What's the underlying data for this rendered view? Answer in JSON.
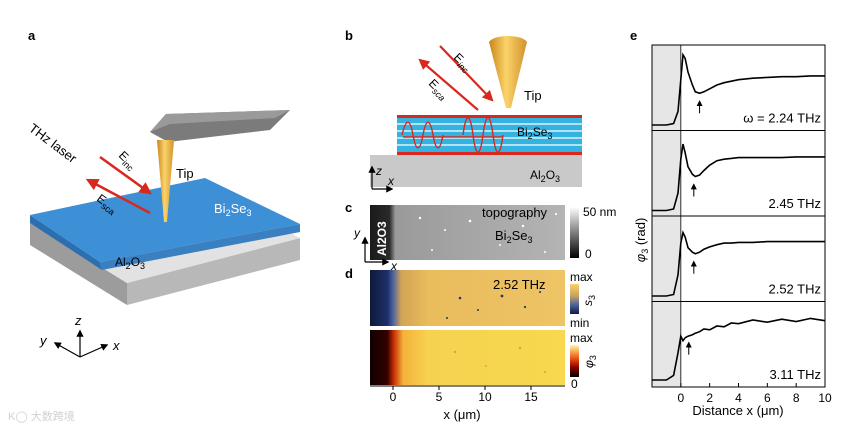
{
  "panels": {
    "a": "a",
    "b": "b",
    "c": "c",
    "d": "d",
    "e": "e"
  },
  "panel_a": {
    "laser": "THz laser",
    "e_inc": "E",
    "inc_sub": "inc",
    "e_sca": "E",
    "sca_sub": "sca",
    "tip": "Tip",
    "film": "Bi",
    "film_sub1": "2",
    "film_mid": "Se",
    "film_sub2": "3",
    "substrate": "Al",
    "sub_sub1": "2",
    "sub_mid": "O",
    "sub_sub2": "3",
    "axes": {
      "z": "z",
      "y": "y",
      "x": "x"
    },
    "colors": {
      "film": "#3d8fd6",
      "substrate": "#cfcfcf",
      "tip": "#f3b33c",
      "arrow": "#d9281e",
      "cantilever": "#7b7b7b"
    }
  },
  "panel_b": {
    "e_inc": "E",
    "inc_sub": "inc",
    "e_sca": "E",
    "sca_sub": "sca",
    "tip": "Tip",
    "film": "Bi",
    "film_sub1": "2",
    "film_mid": "Se",
    "film_sub2": "3",
    "substrate": "Al",
    "sub_sub1": "2",
    "sub_mid": "O",
    "sub_sub2": "3",
    "axes": {
      "z": "z",
      "x": "x"
    }
  },
  "panel_c": {
    "label_film": "Bi",
    "film_sub1": "2",
    "film_mid": "Se",
    "film_sub2": "3",
    "label_sub": "Al2O3",
    "title": "topography",
    "cbar_max": "50 nm",
    "cbar_min": "0",
    "axes": {
      "y": "y",
      "x": "x"
    }
  },
  "panel_d": {
    "freq": "2.52 THz",
    "s3_max": "max",
    "s3_min": "min",
    "s3_label": "s",
    "s3_sub": "3",
    "phi_max": "max",
    "phi_min": "0",
    "phi_label": "φ",
    "phi_sub": "3",
    "xlabel": "x (μm)",
    "xticks": [
      "0",
      "5",
      "10",
      "15"
    ]
  },
  "panel_e": {
    "ylabel": "φ",
    "ylabel_sub": "3",
    "ylabel_unit": " (rad)",
    "xlabel": "Distance x (μm)",
    "xticks": [
      "0",
      "2",
      "4",
      "6",
      "8",
      "10"
    ],
    "traces": [
      {
        "label": "ω = 2.24 THz"
      },
      {
        "label": "2.45 THz"
      },
      {
        "label": "2.52 THz"
      },
      {
        "label": "3.11 THz"
      }
    ]
  },
  "chart_data": {
    "type": "line",
    "xlabel": "Distance x (μm)",
    "ylabel": "φ3 (rad)",
    "xlim": [
      -2.0,
      10.0
    ],
    "x": [
      -2.0,
      -1.0,
      -0.5,
      -0.2,
      0.0,
      0.15,
      0.3,
      0.5,
      0.8,
      1.0,
      1.3,
      1.6,
      2.0,
      2.5,
      3.0,
      3.5,
      4.0,
      5.0,
      6.0,
      7.0,
      8.0,
      9.0,
      10.0
    ],
    "series": [
      {
        "name": "ω = 2.24 THz",
        "values": [
          0.02,
          0.02,
          0.04,
          0.2,
          0.62,
          0.95,
          0.9,
          0.72,
          0.55,
          0.46,
          0.44,
          0.46,
          0.5,
          0.55,
          0.58,
          0.6,
          0.62,
          0.64,
          0.65,
          0.66,
          0.66,
          0.67,
          0.67
        ]
      },
      {
        "name": "2.45 THz",
        "values": [
          0.02,
          0.02,
          0.04,
          0.25,
          0.7,
          0.9,
          0.78,
          0.6,
          0.5,
          0.47,
          0.49,
          0.55,
          0.62,
          0.68,
          0.7,
          0.71,
          0.72,
          0.72,
          0.72,
          0.72,
          0.73,
          0.73,
          0.73
        ]
      },
      {
        "name": "2.52 THz",
        "values": [
          0.02,
          0.02,
          0.04,
          0.3,
          0.72,
          0.86,
          0.8,
          0.66,
          0.6,
          0.58,
          0.6,
          0.64,
          0.67,
          0.7,
          0.72,
          0.72,
          0.73,
          0.73,
          0.74,
          0.74,
          0.74,
          0.74,
          0.74
        ]
      },
      {
        "name": "3.11 THz",
        "values": [
          0.04,
          0.04,
          0.1,
          0.4,
          0.62,
          0.56,
          0.6,
          0.62,
          0.64,
          0.66,
          0.68,
          0.7,
          0.72,
          0.74,
          0.76,
          0.78,
          0.8,
          0.82,
          0.82,
          0.83,
          0.83,
          0.84,
          0.84
        ]
      }
    ],
    "arrows_x": [
      1.3,
      0.9,
      0.9,
      0.55
    ]
  }
}
